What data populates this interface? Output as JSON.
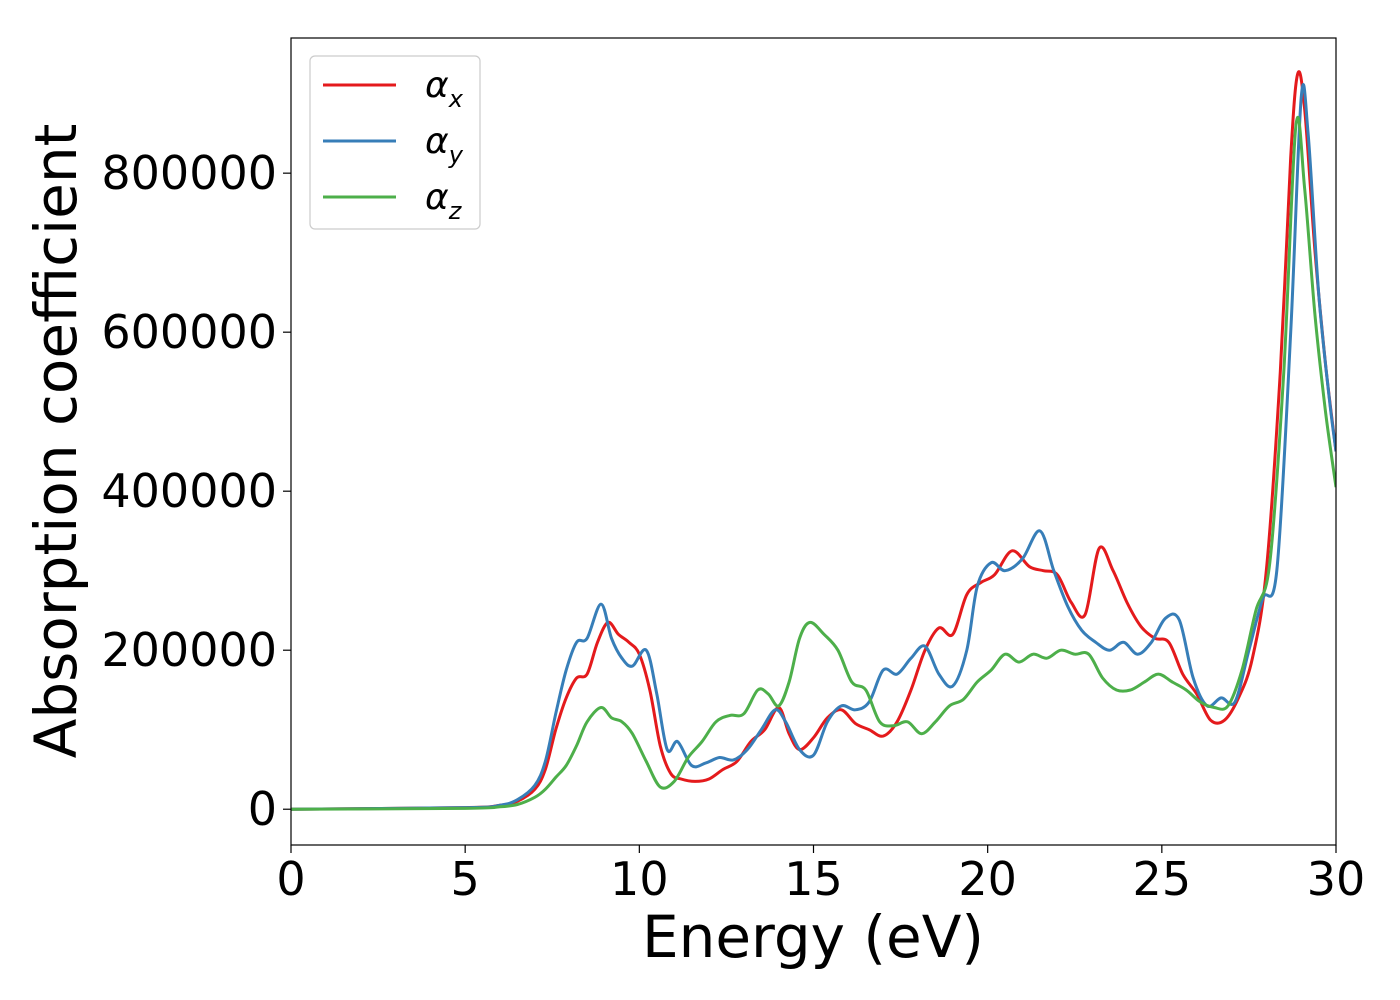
{
  "chart_data": {
    "type": "line",
    "xlabel": "Energy (eV)",
    "ylabel": "Absorption coefficient",
    "xlim": [
      0,
      30
    ],
    "ylim": [
      -45000,
      970000
    ],
    "xticks": [
      0,
      5,
      10,
      15,
      20,
      25,
      30
    ],
    "yticks": [
      0,
      200000,
      400000,
      600000,
      800000
    ],
    "grid": false,
    "legend_position": "top-left",
    "series": [
      {
        "name": "α",
        "subscript": "x",
        "color": "#e41a1c",
        "x": [
          0,
          5,
          6,
          6.5,
          7,
          7.3,
          7.6,
          7.9,
          8.2,
          8.5,
          8.8,
          9.1,
          9.4,
          9.7,
          10.0,
          10.3,
          10.6,
          10.9,
          11.2,
          11.6,
          12.0,
          12.4,
          12.8,
          13.2,
          13.6,
          14.0,
          14.3,
          14.6,
          15.0,
          15.4,
          15.8,
          16.2,
          16.6,
          17.0,
          17.4,
          17.8,
          18.2,
          18.6,
          19.0,
          19.4,
          19.8,
          20.2,
          20.7,
          21.2,
          21.6,
          22.0,
          22.4,
          22.8,
          23.2,
          23.6,
          24.0,
          24.4,
          24.8,
          25.2,
          25.6,
          26.0,
          26.4,
          26.8,
          27.2,
          27.6,
          28.0,
          28.4,
          28.7,
          28.9,
          29.1,
          29.4,
          29.7,
          30.0
        ],
        "y": [
          0,
          2000,
          5000,
          10000,
          25000,
          50000,
          100000,
          140000,
          165000,
          170000,
          210000,
          235000,
          220000,
          210000,
          195000,
          150000,
          80000,
          45000,
          38000,
          35000,
          38000,
          50000,
          60000,
          85000,
          100000,
          128000,
          95000,
          75000,
          90000,
          115000,
          125000,
          108000,
          100000,
          92000,
          110000,
          150000,
          200000,
          228000,
          220000,
          270000,
          285000,
          295000,
          325000,
          305000,
          300000,
          295000,
          260000,
          245000,
          328000,
          300000,
          260000,
          230000,
          215000,
          210000,
          170000,
          145000,
          112000,
          112000,
          140000,
          190000,
          300000,
          550000,
          820000,
          925000,
          880000,
          700000,
          560000,
          450000
        ]
      },
      {
        "name": "α",
        "subscript": "y",
        "color": "#377eb8",
        "x": [
          0,
          5,
          6,
          6.5,
          7,
          7.3,
          7.6,
          7.9,
          8.2,
          8.5,
          8.9,
          9.2,
          9.5,
          9.8,
          10.2,
          10.5,
          10.8,
          11.1,
          11.5,
          11.9,
          12.3,
          12.7,
          13.1,
          13.5,
          13.9,
          14.2,
          14.6,
          15.0,
          15.4,
          15.8,
          16.2,
          16.6,
          17.0,
          17.4,
          17.8,
          18.2,
          18.6,
          19.0,
          19.4,
          19.7,
          20.1,
          20.5,
          21.0,
          21.5,
          21.9,
          22.3,
          22.7,
          23.1,
          23.5,
          23.9,
          24.3,
          24.7,
          25.1,
          25.5,
          25.9,
          26.3,
          26.7,
          27.1,
          27.5,
          27.9,
          28.3,
          28.7,
          29.0,
          29.2,
          29.5,
          29.8,
          30.0
        ],
        "y": [
          0,
          2000,
          5000,
          12000,
          30000,
          60000,
          120000,
          175000,
          210000,
          215000,
          258000,
          215000,
          190000,
          180000,
          200000,
          145000,
          75000,
          85000,
          55000,
          58000,
          65000,
          62000,
          75000,
          100000,
          125000,
          110000,
          75000,
          68000,
          110000,
          130000,
          125000,
          135000,
          175000,
          170000,
          190000,
          205000,
          170000,
          155000,
          200000,
          280000,
          310000,
          300000,
          315000,
          350000,
          300000,
          255000,
          225000,
          210000,
          200000,
          210000,
          195000,
          210000,
          240000,
          238000,
          165000,
          130000,
          140000,
          135000,
          200000,
          265000,
          300000,
          600000,
          895000,
          850000,
          650000,
          520000,
          450000
        ]
      },
      {
        "name": "α",
        "subscript": "z",
        "color": "#4daf4a",
        "x": [
          0,
          5,
          6,
          6.5,
          7,
          7.3,
          7.6,
          7.9,
          8.2,
          8.5,
          8.9,
          9.2,
          9.5,
          9.8,
          10.2,
          10.6,
          11.0,
          11.4,
          11.8,
          12.2,
          12.6,
          13.0,
          13.4,
          13.7,
          14.0,
          14.3,
          14.6,
          14.9,
          15.3,
          15.7,
          16.1,
          16.5,
          16.9,
          17.3,
          17.7,
          18.1,
          18.5,
          18.9,
          19.3,
          19.7,
          20.1,
          20.5,
          20.9,
          21.3,
          21.7,
          22.1,
          22.5,
          22.9,
          23.3,
          23.7,
          24.1,
          24.5,
          24.9,
          25.3,
          25.7,
          26.1,
          26.5,
          26.9,
          27.3,
          27.7,
          28.1,
          28.5,
          28.85,
          29.1,
          29.4,
          29.7,
          30.0
        ],
        "y": [
          0,
          1000,
          3000,
          6000,
          15000,
          25000,
          40000,
          55000,
          80000,
          110000,
          128000,
          115000,
          110000,
          95000,
          60000,
          28000,
          35000,
          65000,
          85000,
          110000,
          118000,
          120000,
          150000,
          145000,
          130000,
          160000,
          215000,
          235000,
          220000,
          200000,
          160000,
          150000,
          110000,
          105000,
          110000,
          95000,
          110000,
          130000,
          138000,
          160000,
          175000,
          195000,
          185000,
          195000,
          190000,
          200000,
          195000,
          195000,
          165000,
          150000,
          150000,
          160000,
          170000,
          160000,
          150000,
          135000,
          128000,
          130000,
          175000,
          250000,
          310000,
          550000,
          860000,
          780000,
          620000,
          500000,
          405000
        ]
      }
    ]
  }
}
